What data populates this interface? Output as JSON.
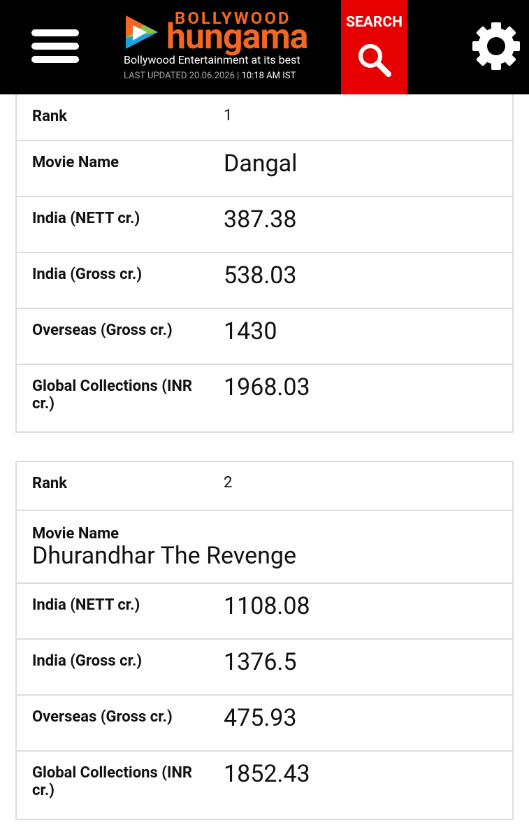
{
  "header": {
    "brand_top": "BOLLYWOOD",
    "brand_main": "hungama",
    "tagline": "Bollywood Entertainment at its best",
    "last_updated": "LAST UPDATED 20.06.2026 |",
    "time": "10:18 AM IST",
    "search": "SEARCH"
  },
  "tables": [
    {
      "rows": [
        [
          "Rank",
          "1"
        ],
        [
          "Movie Name",
          "Dangal"
        ],
        [
          "India (NETT cr.)",
          "387.38"
        ],
        [
          "India (Gross cr.)",
          "538.03"
        ],
        [
          "Overseas (Gross cr.)",
          "1430"
        ],
        [
          "Global Collections (INR cr.)",
          "1968.03"
        ]
      ]
    },
    {
      "rows": [
        [
          "Rank",
          "2"
        ],
        [
          "Movie Name",
          "Dhurandhar The Revenge"
        ],
        [
          "India (NETT cr.)",
          "1108.08"
        ],
        [
          "India (Gross cr.)",
          "1376.5"
        ],
        [
          "Overseas (Gross cr.)",
          "475.93"
        ],
        [
          "Global Collections (INR cr.)",
          "1852.43"
        ]
      ]
    }
  ]
}
